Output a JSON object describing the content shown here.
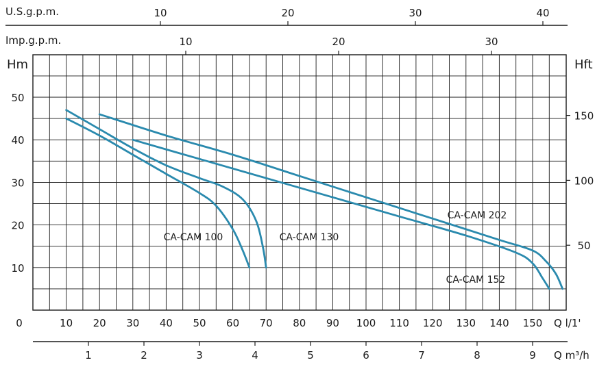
{
  "chart_data": {
    "type": "line",
    "title": "",
    "xlabel": "Q l/1'",
    "ylabel": "Hm",
    "ylabel_right": "Hft",
    "xlim": [
      0,
      160
    ],
    "ylim": [
      0,
      60
    ],
    "grid": true,
    "axes": {
      "top_usgpm": {
        "label": "U.S.g.p.m.",
        "ticks": [
          10,
          20,
          30,
          40
        ]
      },
      "top_impgpm": {
        "label": "Imp.g.p.m.",
        "ticks": [
          10,
          20,
          30
        ]
      },
      "left_hm": {
        "label": "Hm",
        "ticks": [
          10,
          20,
          30,
          40,
          50
        ]
      },
      "right_hft": {
        "label": "Hft",
        "ticks": [
          50,
          100,
          150
        ]
      },
      "bottom_lmin": {
        "label": "Q l/1'",
        "origin": "0",
        "ticks": [
          10,
          20,
          30,
          40,
          50,
          60,
          70,
          80,
          90,
          100,
          110,
          120,
          130,
          140,
          150
        ]
      },
      "bottom_m3h": {
        "label": "Q m³/h",
        "ticks": [
          1,
          2,
          3,
          4,
          5,
          6,
          7,
          8,
          9
        ]
      }
    },
    "color": "#2a8aae",
    "series": [
      {
        "name": "CA-CAM 100",
        "x": [
          10,
          20,
          30,
          40,
          50,
          55,
          60,
          63,
          65
        ],
        "y": [
          45,
          41,
          36.5,
          32,
          27.5,
          24.5,
          19,
          14,
          10
        ]
      },
      {
        "name": "CA-CAM 130",
        "x": [
          10,
          20,
          30,
          40,
          50,
          57,
          63,
          67,
          69,
          70
        ],
        "y": [
          47,
          42.5,
          38,
          34,
          31,
          29,
          26,
          21,
          15,
          10
        ]
      },
      {
        "name": "CA-CAM 152",
        "x": [
          30,
          50,
          70,
          90,
          110,
          130,
          145,
          150,
          153,
          155
        ],
        "y": [
          40,
          35.5,
          31,
          26.5,
          22,
          17.5,
          13.5,
          11,
          7.5,
          5
        ]
      },
      {
        "name": "CA-CAM 202",
        "x": [
          20,
          40,
          60,
          80,
          100,
          120,
          140,
          150,
          154,
          157,
          159
        ],
        "y": [
          46,
          41,
          36.5,
          31.5,
          26.5,
          21.5,
          16.5,
          14,
          11.5,
          8.5,
          5
        ]
      }
    ]
  }
}
